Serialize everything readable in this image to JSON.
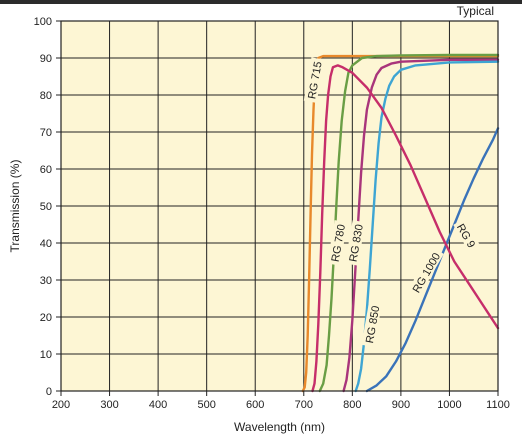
{
  "chart_data": {
    "type": "line",
    "title": "",
    "corner_note": "Typical",
    "xlabel": "Wavelength (nm)",
    "ylabel": "Transmission (%)",
    "xlim": [
      200,
      1100
    ],
    "ylim": [
      0,
      100
    ],
    "xticks": [
      200,
      300,
      400,
      500,
      600,
      700,
      800,
      900,
      1000,
      1100
    ],
    "yticks": [
      0,
      10,
      20,
      30,
      40,
      50,
      60,
      70,
      80,
      90,
      100
    ],
    "grid": true,
    "colors": {
      "background": "#FDF6D4",
      "grid": "#222222",
      "frame": "#222222",
      "top_bar": "#2b2b2b"
    },
    "series": [
      {
        "name": "RG 715",
        "color": "#E8892B",
        "label_at": [
          722,
          84
        ],
        "label_angle": -80,
        "x": [
          698,
          702,
          705,
          708,
          711,
          714,
          717,
          720,
          723,
          726,
          730,
          740,
          760,
          800,
          850,
          900,
          1000,
          1100
        ],
        "y": [
          0,
          1,
          5,
          15,
          30,
          48,
          64,
          76,
          84,
          88,
          90,
          90.5,
          90.5,
          90.5,
          90.5,
          90.5,
          90.5,
          90.5
        ]
      },
      {
        "name": "RG 780",
        "color": "#6A9E45",
        "label_at": [
          770,
          40
        ],
        "label_angle": -80,
        "x": [
          733,
          740,
          747,
          752,
          757,
          762,
          767,
          772,
          778,
          785,
          792,
          800,
          820,
          850,
          900,
          1000,
          1100
        ],
        "y": [
          0,
          2,
          7,
          15,
          25,
          37,
          50,
          62,
          73,
          81,
          86,
          88,
          90,
          90.5,
          90.7,
          90.8,
          90.8
        ]
      },
      {
        "name": "RG 830",
        "color": "#A9357B",
        "label_at": [
          807,
          40
        ],
        "label_angle": -80,
        "x": [
          782,
          788,
          794,
          800,
          806,
          812,
          818,
          824,
          830,
          840,
          850,
          860,
          880,
          900,
          1000,
          1100
        ],
        "y": [
          0,
          3,
          9,
          19,
          32,
          46,
          59,
          69,
          76,
          82,
          85.5,
          87.3,
          88.5,
          89,
          89.5,
          89.5
        ]
      },
      {
        "name": "RG 850",
        "color": "#3EA5D3",
        "label_at": [
          841,
          18
        ],
        "label_angle": -80,
        "x": [
          807,
          812,
          818,
          824,
          830,
          836,
          842,
          848,
          854,
          860,
          868,
          876,
          886,
          900,
          930,
          1000,
          1100
        ],
        "y": [
          0,
          2,
          6,
          13,
          22,
          33,
          45,
          57,
          67,
          74,
          79,
          82.5,
          85,
          86.8,
          88,
          88.8,
          89
        ]
      },
      {
        "name": "RG 1000",
        "color": "#3A73B9",
        "label_at": [
          952,
          32
        ],
        "label_angle": -60,
        "x": [
          830,
          850,
          870,
          890,
          910,
          930,
          950,
          970,
          990,
          1010,
          1030,
          1050,
          1070,
          1090,
          1100
        ],
        "y": [
          0,
          1.5,
          4,
          8,
          13,
          19,
          25.5,
          32,
          38.5,
          45,
          51.5,
          57.5,
          63,
          68,
          71
        ]
      },
      {
        "name": "RG 9",
        "color": "#C62E6A",
        "label_at": [
          1035,
          42
        ],
        "label_angle": 60,
        "x": [
          718,
          722,
          726,
          730,
          734,
          738,
          742,
          746,
          750,
          755,
          760,
          770,
          780,
          800,
          830,
          860,
          890,
          920,
          950,
          980,
          1010,
          1040,
          1060,
          1080,
          1100
        ],
        "y": [
          0,
          2,
          8,
          18,
          32,
          48,
          62,
          73,
          80,
          85,
          87.5,
          88,
          87.5,
          86,
          82,
          76.5,
          69,
          61,
          52,
          43,
          35,
          29,
          25,
          21,
          17
        ]
      }
    ]
  }
}
